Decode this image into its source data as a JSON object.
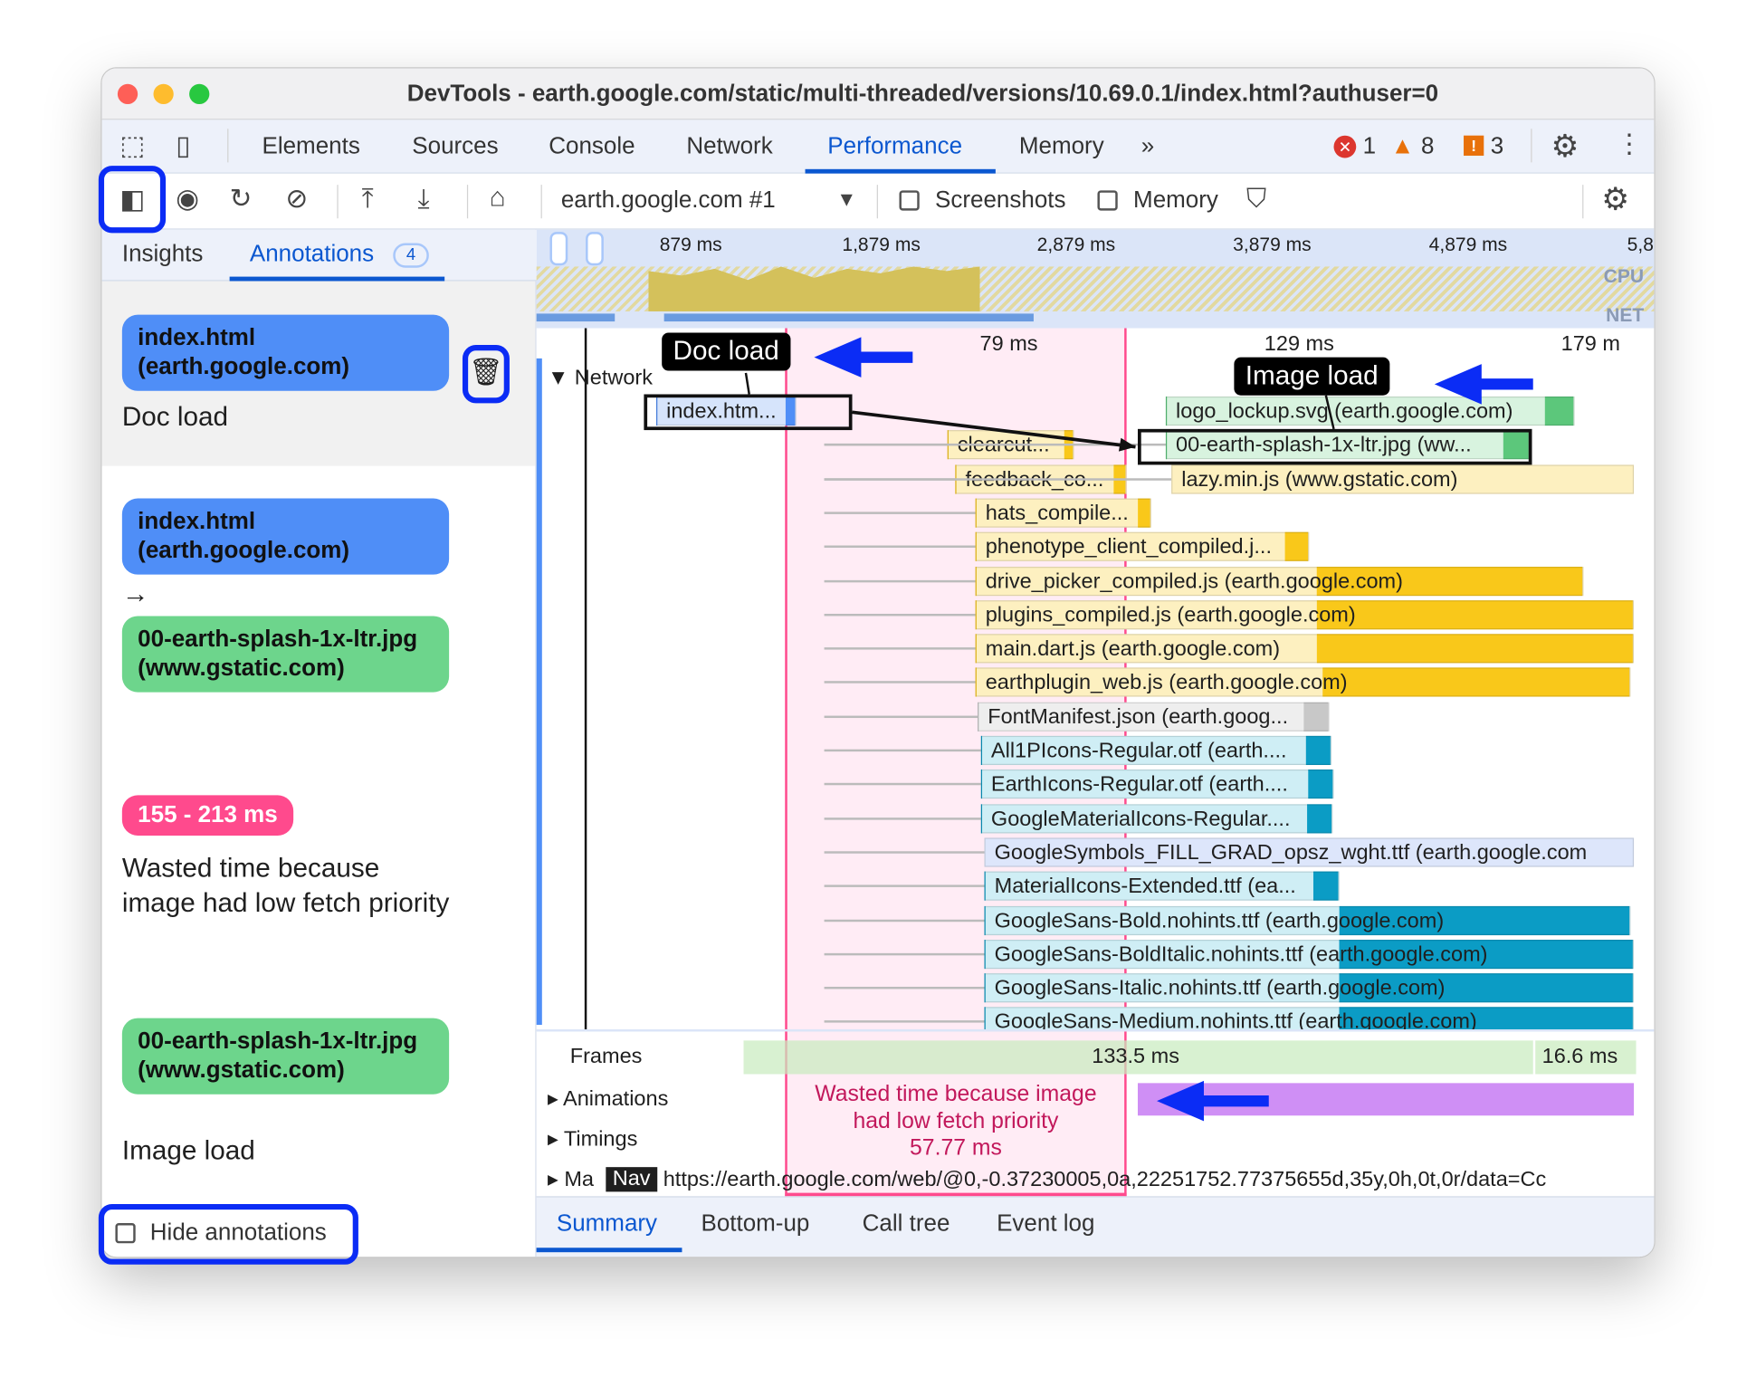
{
  "window": {
    "title": "DevTools - earth.google.com/static/multi-threaded/versions/10.69.0.1/index.html?authuser=0"
  },
  "tabs": [
    {
      "label": "Elements"
    },
    {
      "label": "Sources"
    },
    {
      "label": "Console"
    },
    {
      "label": "Network"
    },
    {
      "label": "Performance",
      "active": true
    },
    {
      "label": "Memory"
    }
  ],
  "status": {
    "errors": "1",
    "warnings": "8",
    "issues": "3"
  },
  "toolbar": {
    "target": "earth.google.com #1",
    "screenshots": "Screenshots",
    "memory": "Memory"
  },
  "sidebar": {
    "tabs": {
      "insights": "Insights",
      "annotations": "Annotations",
      "count": "4"
    },
    "annotations": [
      {
        "chip": "index.html (earth.google.com)",
        "label": "Doc load"
      },
      {
        "from": "index.html (earth.google.com)",
        "arrow": "→",
        "to": "00-earth-splash-1x-ltr.jpg (www.gstatic.com)"
      },
      {
        "range": "155 - 213 ms",
        "label": "Wasted time because image had low fetch priority"
      },
      {
        "chip": "00-earth-splash-1x-ltr.jpg (www.gstatic.com)",
        "label": "Image load"
      }
    ],
    "hide": "Hide annotations"
  },
  "overview": {
    "ticks": [
      "879 ms",
      "1,879 ms",
      "2,879 ms",
      "3,879 ms",
      "4,879 ms",
      "5,8"
    ],
    "cpu": "CPU",
    "net": "NET"
  },
  "main": {
    "ticks": [
      "79 ms",
      "129 ms",
      "179 m"
    ],
    "network": "Network",
    "callouts": {
      "doc": "Doc load",
      "image": "Image load"
    },
    "requests": [
      {
        "label": "index.htm...",
        "row": 0,
        "x0": 585,
        "x1": 710,
        "bg": "#d6e4fb",
        "end": "#4f8ef7"
      },
      {
        "label": "logo_lockup.svg (earth.google.com)",
        "row": 0,
        "x0": 1040,
        "x1": 1405,
        "bg": "#d8f3df",
        "end": "#5cc77b"
      },
      {
        "label": "clearcut...",
        "row": 1,
        "x0": 845,
        "x1": 958,
        "bg": "#fdf0c0",
        "end": "#f9c81a"
      },
      {
        "label": "00-earth-splash-1x-ltr.jpg (ww...",
        "row": 1,
        "x0": 1040,
        "x1": 1365,
        "bg": "#d8f3df",
        "end": "#5cc77b"
      },
      {
        "label": "feedback_co...",
        "row": 2,
        "x0": 852,
        "x1": 1005,
        "bg": "#fdf0c0",
        "end": "#f9c81a"
      },
      {
        "label": "lazy.min.js (www.gstatic.com)",
        "row": 2,
        "x0": 1045,
        "x1": 1458,
        "bg": "#fdf0c0",
        "end": "#fdf0c0"
      },
      {
        "label": "hats_compile...",
        "row": 3,
        "x0": 870,
        "x1": 1027,
        "bg": "#fdf0c0",
        "end": "#f9c81a"
      },
      {
        "label": "phenotype_client_compiled.j...",
        "row": 4,
        "x0": 870,
        "x1": 1168,
        "bg": "#fdf0c0",
        "end": "#f9c81a"
      },
      {
        "label": "drive_picker_compiled.js (earth.google.com)",
        "row": 5,
        "x0": 870,
        "x1": 1413,
        "bg": "#fdf0c0",
        "end": "#f9c81a",
        "split": 1175
      },
      {
        "label": "plugins_compiled.js (earth.google.com)",
        "row": 6,
        "x0": 870,
        "x1": 1458,
        "bg": "#fdf0c0",
        "end": "#f9c81a",
        "split": 1175
      },
      {
        "label": "main.dart.js (earth.google.com)",
        "row": 7,
        "x0": 870,
        "x1": 1458,
        "bg": "#fdf0c0",
        "end": "#f9c81a",
        "split": 1175
      },
      {
        "label": "earthplugin_web.js (earth.google.com)",
        "row": 8,
        "x0": 870,
        "x1": 1455,
        "bg": "#fdf0c0",
        "end": "#f9c81a",
        "split": 1180
      },
      {
        "label": "FontManifest.json (earth.goog...",
        "row": 9,
        "x0": 872,
        "x1": 1186,
        "bg": "#eeeeee",
        "end": "#c8c8c8"
      },
      {
        "label": "All1PIcons-Regular.otf (earth....",
        "row": 10,
        "x0": 875,
        "x1": 1188,
        "bg": "#cfeef5",
        "end": "#0b9cc5"
      },
      {
        "label": "EarthIcons-Regular.otf (earth....",
        "row": 11,
        "x0": 875,
        "x1": 1190,
        "bg": "#cfeef5",
        "end": "#0b9cc5"
      },
      {
        "label": "GoogleMaterialIcons-Regular....",
        "row": 12,
        "x0": 875,
        "x1": 1189,
        "bg": "#cfeef5",
        "end": "#0b9cc5"
      },
      {
        "label": "GoogleSymbols_FILL_GRAD_opsz_wght.ttf (earth.google.com",
        "row": 13,
        "x0": 878,
        "x1": 1458,
        "bg": "#dde6fb",
        "end": "#dde6fb"
      },
      {
        "label": "MaterialIcons-Extended.ttf (ea...",
        "row": 14,
        "x0": 878,
        "x1": 1195,
        "bg": "#cfeef5",
        "end": "#0b9cc5"
      },
      {
        "label": "GoogleSans-Bold.nohints.ttf (earth.google.com)",
        "row": 15,
        "x0": 878,
        "x1": 1455,
        "bg": "#cfeef5",
        "end": "#0b9cc5",
        "split": 1195
      },
      {
        "label": "GoogleSans-BoldItalic.nohints.ttf (earth.google.com)",
        "row": 16,
        "x0": 878,
        "x1": 1458,
        "bg": "#cfeef5",
        "end": "#0b9cc5",
        "split": 1195
      },
      {
        "label": "GoogleSans-Italic.nohints.ttf (earth.google.com)",
        "row": 17,
        "x0": 878,
        "x1": 1458,
        "bg": "#cfeef5",
        "end": "#0b9cc5",
        "split": 1195
      },
      {
        "label": "GoogleSans-Medium.nohints.ttf (earth.google.com)",
        "row": 18,
        "x0": 878,
        "x1": 1458,
        "bg": "#cfeef5",
        "end": "#0b9cc5",
        "split": 1195
      }
    ]
  },
  "tracks": {
    "frames": "Frames",
    "frame1": "133.5 ms",
    "frame2": "16.6 ms",
    "animations": "Animations",
    "timings": "Timings",
    "main": "Ma",
    "main_url": "https://earth.google.com/web/@0,-0.37230005,0a,22251752.77375655d,35y,0h,0t,0r/data=Cc",
    "nav": "Nav"
  },
  "range_annotation": {
    "label1": "Wasted time because image",
    "label2": "had low fetch priority",
    "duration": "57.77 ms"
  },
  "bottom_tabs": [
    {
      "label": "Summary",
      "active": true
    },
    {
      "label": "Bottom-up"
    },
    {
      "label": "Call tree"
    },
    {
      "label": "Event log"
    }
  ],
  "colors": {
    "accent": "#0b57d0",
    "highlight": "#0b2cf5",
    "range": "#ff4a8d",
    "doc_chip": "#4f8ef7",
    "image_chip": "#6dd58c"
  }
}
